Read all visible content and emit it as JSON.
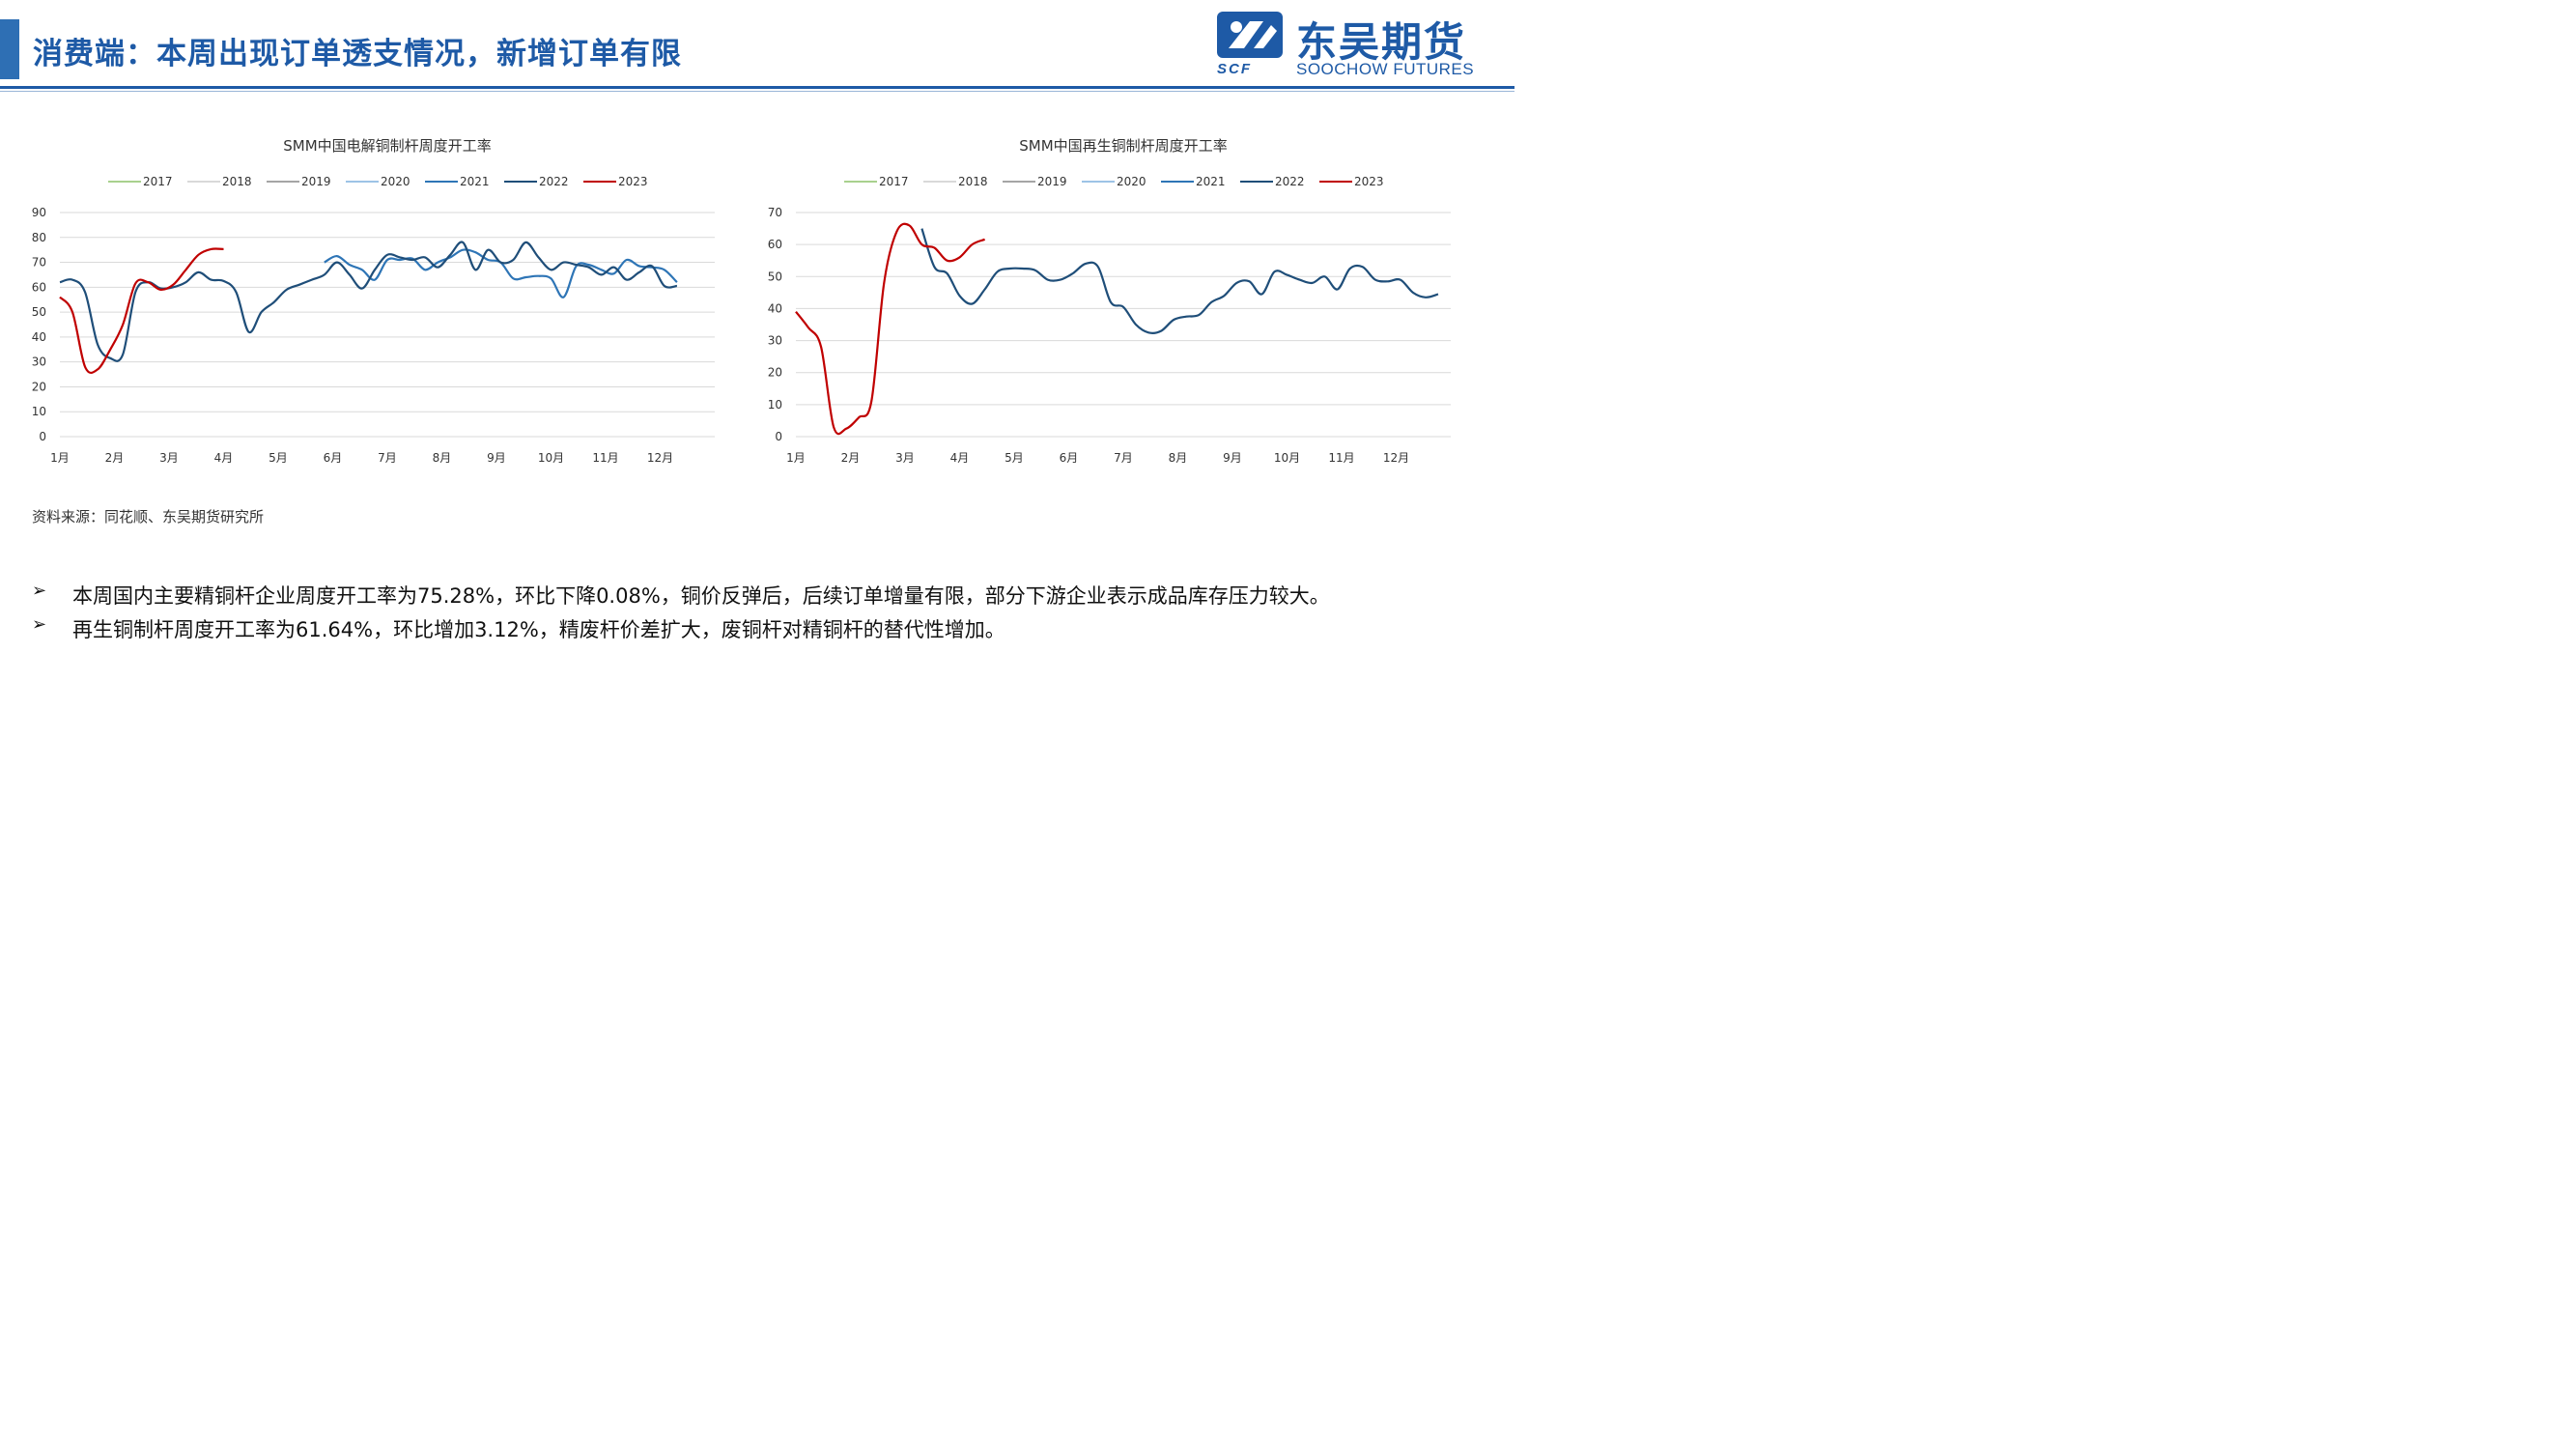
{
  "header": {
    "title": "消费端：本周出现订单透支情况，新增订单有限",
    "logo_name": "东吴期货",
    "logo_en": "SOOCHOW FUTURES",
    "logo_mark": "SCF",
    "brand_color": "#1e5aa6"
  },
  "legend_years": [
    "2017",
    "2018",
    "2019",
    "2020",
    "2021",
    "2022",
    "2023"
  ],
  "legend_colors": [
    "#a9d18e",
    "#d9d9d9",
    "#a5a5a5",
    "#9dc3e6",
    "#2e75b6",
    "#1f4e79",
    "#c00000"
  ],
  "months": [
    "1月",
    "2月",
    "3月",
    "4月",
    "5月",
    "6月",
    "7月",
    "8月",
    "9月",
    "10月",
    "11月",
    "12月"
  ],
  "chart_data": [
    {
      "type": "line",
      "title": "SMM中国电解铜制杆周度开工率",
      "ylim": [
        0,
        90
      ],
      "yticks": [
        0,
        10,
        20,
        30,
        40,
        50,
        60,
        70,
        80,
        90
      ],
      "grid": true,
      "legend_position": "top",
      "series": [
        {
          "name": "2021",
          "color": "#2e75b6",
          "points": [
            [
              22,
              70
            ],
            [
              23,
              72.5
            ],
            [
              24,
              69
            ],
            [
              25,
              67
            ],
            [
              26,
              63
            ],
            [
              27,
              71
            ],
            [
              28,
              71
            ],
            [
              29,
              71.5
            ],
            [
              30,
              67
            ],
            [
              31,
              70
            ],
            [
              32,
              72
            ],
            [
              33,
              75
            ],
            [
              34,
              74
            ],
            [
              35,
              71
            ],
            [
              36,
              70
            ],
            [
              37,
              63.5
            ],
            [
              38,
              64
            ],
            [
              39,
              64.5
            ],
            [
              40,
              63.5
            ],
            [
              41,
              56
            ],
            [
              42,
              68.5
            ],
            [
              43,
              69
            ],
            [
              44,
              67
            ],
            [
              45,
              65.5
            ],
            [
              46,
              71
            ],
            [
              47,
              68.5
            ],
            [
              48,
              68
            ],
            [
              49,
              67
            ],
            [
              50,
              62
            ]
          ]
        },
        {
          "name": "2022",
          "color": "#1f4e79",
          "points": [
            [
              1,
              62
            ],
            [
              2,
              63
            ],
            [
              3,
              58
            ],
            [
              4,
              37
            ],
            [
              5,
              31.5
            ],
            [
              6,
              33
            ],
            [
              7,
              58
            ],
            [
              8,
              62
            ],
            [
              9,
              59.5
            ],
            [
              10,
              60
            ],
            [
              11,
              62
            ],
            [
              12,
              66
            ],
            [
              13,
              63
            ],
            [
              14,
              62.5
            ],
            [
              15,
              58
            ],
            [
              16,
              42
            ],
            [
              17,
              50
            ],
            [
              18,
              54
            ],
            [
              19,
              59
            ],
            [
              20,
              61
            ],
            [
              21,
              63
            ],
            [
              22,
              65
            ],
            [
              23,
              70
            ],
            [
              24,
              65
            ],
            [
              25,
              59.5
            ],
            [
              26,
              67
            ],
            [
              27,
              73
            ],
            [
              28,
              72
            ],
            [
              29,
              71
            ],
            [
              30,
              72
            ],
            [
              31,
              68
            ],
            [
              32,
              73
            ],
            [
              33,
              78
            ],
            [
              34,
              67
            ],
            [
              35,
              75
            ],
            [
              36,
              70
            ],
            [
              37,
              71
            ],
            [
              38,
              78
            ],
            [
              39,
              72
            ],
            [
              40,
              67
            ],
            [
              41,
              70
            ],
            [
              42,
              69
            ],
            [
              43,
              68
            ],
            [
              44,
              65
            ],
            [
              45,
              68
            ],
            [
              46,
              63
            ],
            [
              47,
              66
            ],
            [
              48,
              68.5
            ],
            [
              49,
              60.5
            ],
            [
              50,
              60.5
            ]
          ]
        },
        {
          "name": "2023",
          "color": "#c00000",
          "points": [
            [
              1,
              56
            ],
            [
              2,
              50
            ],
            [
              3,
              28
            ],
            [
              4,
              27
            ],
            [
              5,
              35
            ],
            [
              6,
              45
            ],
            [
              7,
              61.5
            ],
            [
              8,
              62
            ],
            [
              9,
              59
            ],
            [
              10,
              61
            ],
            [
              11,
              67
            ],
            [
              12,
              73
            ],
            [
              13,
              75.3
            ],
            [
              14,
              75.3
            ]
          ]
        }
      ]
    },
    {
      "type": "line",
      "title": "SMM中国再生铜制杆周度开工率",
      "ylim": [
        0,
        70
      ],
      "yticks": [
        0,
        10,
        20,
        30,
        40,
        50,
        60,
        70
      ],
      "grid": true,
      "legend_position": "top",
      "series": [
        {
          "name": "2022",
          "color": "#1f4e79",
          "points": [
            [
              11,
              65
            ],
            [
              12,
              53
            ],
            [
              13,
              51
            ],
            [
              14,
              44
            ],
            [
              15,
              41.5
            ],
            [
              16,
              46
            ],
            [
              17,
              51.5
            ],
            [
              18,
              52.5
            ],
            [
              19,
              52.5
            ],
            [
              20,
              52
            ],
            [
              21,
              49
            ],
            [
              22,
              49
            ],
            [
              23,
              51
            ],
            [
              24,
              54
            ],
            [
              25,
              53
            ],
            [
              26,
              42
            ],
            [
              27,
              40.5
            ],
            [
              28,
              35
            ],
            [
              29,
              32.5
            ],
            [
              30,
              33
            ],
            [
              31,
              36.5
            ],
            [
              32,
              37.5
            ],
            [
              33,
              38
            ],
            [
              34,
              42
            ],
            [
              35,
              44
            ],
            [
              36,
              48
            ],
            [
              37,
              48.5
            ],
            [
              38,
              44.5
            ],
            [
              39,
              51.5
            ],
            [
              40,
              50.5
            ],
            [
              41,
              49
            ],
            [
              42,
              48
            ],
            [
              43,
              50
            ],
            [
              44,
              46
            ],
            [
              45,
              52.5
            ],
            [
              46,
              53
            ],
            [
              47,
              49
            ],
            [
              48,
              48.5
            ],
            [
              49,
              49
            ],
            [
              50,
              45
            ],
            [
              51,
              43.5
            ],
            [
              52,
              44.5
            ]
          ]
        },
        {
          "name": "2023",
          "color": "#c00000",
          "points": [
            [
              1,
              39
            ],
            [
              2,
              34
            ],
            [
              3,
              28
            ],
            [
              4,
              3
            ],
            [
              5,
              2.5
            ],
            [
              6,
              6
            ],
            [
              7,
              11
            ],
            [
              8,
              48
            ],
            [
              9,
              64
            ],
            [
              10,
              66
            ],
            [
              11,
              60
            ],
            [
              12,
              59
            ],
            [
              13,
              55
            ],
            [
              14,
              56
            ],
            [
              15,
              60
            ],
            [
              16,
              61.6
            ]
          ]
        }
      ]
    }
  ],
  "source": "资料来源：同花顺、东吴期货研究所",
  "bullets": [
    {
      "arrow": "➢",
      "text": "本周国内主要精铜杆企业周度开工率为75.28%，环比下降0.08%，铜价反弹后，后续订单增量有限，部分下游企业表示成品库存压力较大。"
    },
    {
      "arrow": "➢",
      "text": "再生铜制杆周度开工率为61.64%，环比增加3.12%，精废杆价差扩大，废铜杆对精铜杆的替代性增加。"
    }
  ]
}
